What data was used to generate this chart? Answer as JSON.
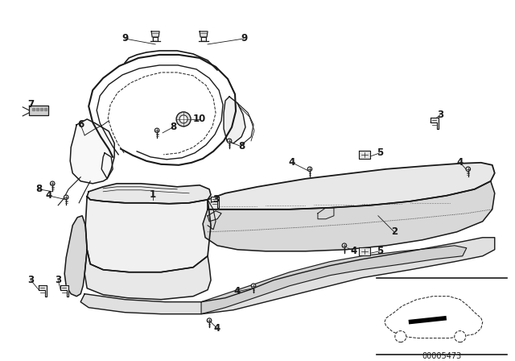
{
  "bg_color": "#ffffff",
  "line_color": "#1a1a1a",
  "diagram_code": "00005473"
}
